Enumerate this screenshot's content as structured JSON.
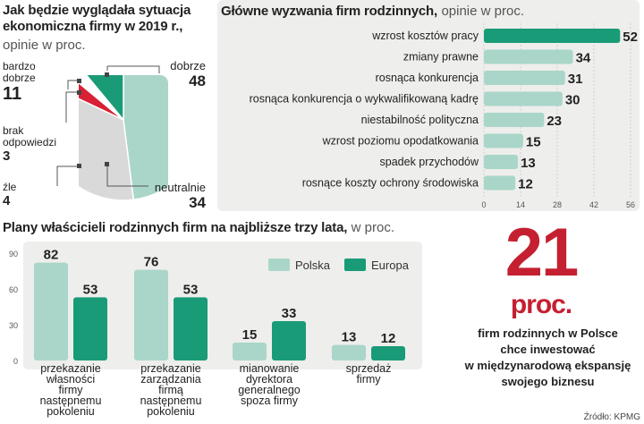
{
  "pie_panel": {
    "title": "Jak będzie wyglądała sytuacja ekonomiczna firmy w 2019 r.,",
    "subtitle": "opinie w proc.",
    "chart_data": {
      "type": "pie",
      "categories": [
        "dobrze",
        "neutralnie",
        "źle",
        "brak odpowiedzi",
        "bardzo dobrze"
      ],
      "values": [
        48,
        34,
        4,
        3,
        11
      ],
      "colors": [
        "#a9d6c9",
        "#d9d9d9",
        "#d92035",
        "#ffffff",
        "#1a9b77"
      ]
    },
    "labels": {
      "bardzo_dobrze": {
        "name_line1": "bardzo",
        "name_line2": "dobrze",
        "value": "11"
      },
      "brak_odpowiedzi": {
        "name_line1": "brak",
        "name_line2": "odpowiedzi",
        "value": "3"
      },
      "zle": {
        "name": "źle",
        "value": "4"
      },
      "dobrze": {
        "name": "dobrze",
        "value": "48"
      },
      "neutralnie": {
        "name": "neutralnie",
        "value": "34"
      }
    }
  },
  "challenges_panel": {
    "title": "Główne wyzwania firm rodzinnych,",
    "subtitle": "opinie w proc.",
    "chart_data": {
      "type": "bar",
      "orientation": "horizontal",
      "categories": [
        "wzrost kosztów pracy",
        "zmiany prawne",
        "rosnąca konkurencja",
        "rosnąca konkurencja o wykwalifikowaną kadrę",
        "niestabilność polityczna",
        "wzrost poziomu  opodatkowania",
        "spadek przychodów",
        "rosnące koszty ochrony środowiska"
      ],
      "values": [
        52,
        34,
        31,
        30,
        23,
        15,
        13,
        12
      ],
      "xlim": [
        0,
        56
      ],
      "xticks": [
        "0",
        "14",
        "28",
        "42",
        "56"
      ],
      "highlight_color": "#1a9b77",
      "bar_color": "#a9d6c9"
    }
  },
  "plans_panel": {
    "title": "Plany właścicieli rodzinnych firm na najbliższe  trzy lata,",
    "subtitle": "w proc.",
    "chart_data": {
      "type": "bar",
      "categories": [
        [
          "przekazanie",
          "własności",
          "firmy",
          "następnemu",
          "pokoleniu"
        ],
        [
          "przekazanie",
          "zarządzania",
          "firmą",
          "następnemu",
          "pokoleniu"
        ],
        [
          "mianowanie",
          "dyrektora",
          "generalnego",
          "spoza firmy"
        ],
        [
          "sprzedaż",
          "firmy"
        ]
      ],
      "series": [
        {
          "name": "Polska",
          "values": [
            82,
            76,
            15,
            13
          ],
          "color": "#a9d6c9"
        },
        {
          "name": "Europa",
          "values": [
            53,
            53,
            33,
            12
          ],
          "color": "#1a9b77"
        }
      ],
      "ylim": [
        0,
        90
      ],
      "yticks": [
        "90",
        "60",
        "30",
        "0"
      ]
    }
  },
  "stat_panel": {
    "number": "21",
    "unit": "proc.",
    "lines": [
      "firm rodzinnych w Polsce",
      "chce inwestować",
      "w  międzynarodową ekspansję",
      "swojego biznesu"
    ]
  },
  "source": "Źródło: KPMG"
}
